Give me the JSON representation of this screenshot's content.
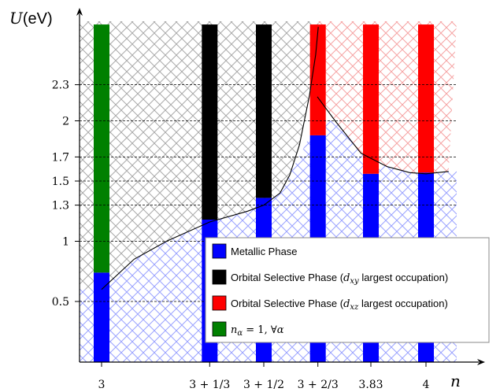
{
  "chart_data": {
    "type": "bar",
    "xlabel": "n",
    "ylabel": "U(eV)",
    "x_ticks": [
      {
        "x": 3.0,
        "label": "3"
      },
      {
        "x": 3.3333,
        "label": "3 + 1/3"
      },
      {
        "x": 3.5,
        "label": "3 + 1/2"
      },
      {
        "x": 3.6667,
        "label": "3 + 2/3"
      },
      {
        "x": 3.83,
        "label": "3.83"
      },
      {
        "x": 4.0,
        "label": "4"
      }
    ],
    "y_ticks": [
      {
        "value": 0.5,
        "label": "0.5"
      },
      {
        "value": 1.0,
        "label": "1"
      },
      {
        "value": 1.3,
        "label": "1.3"
      },
      {
        "value": 1.5,
        "label": "1.5"
      },
      {
        "value": 1.7,
        "label": "1.7"
      },
      {
        "value": 2.0,
        "label": "2"
      },
      {
        "value": 2.3,
        "label": "2.3"
      }
    ],
    "ylim": [
      -0.05,
      2.8
    ],
    "grid": "dashed horizontal lines at labelled U values",
    "legend_position": "lower-right",
    "legend": [
      {
        "key": "metallic",
        "label": "Metallic Phase",
        "color": "#0000ff"
      },
      {
        "key": "osp_xy",
        "label": "Orbital Selective Phase (dxy largest occupation)",
        "color": "#000000"
      },
      {
        "key": "osp_xz",
        "label": "Orbital Selective Phase (dxz largest occupation)",
        "color": "#ff0000"
      },
      {
        "key": "mott",
        "label": "nα = 1, ∀α",
        "color": "#008000"
      }
    ],
    "columns": [
      {
        "x_label": "3",
        "segments": [
          {
            "phase": "metallic",
            "from": -0.05,
            "to": 0.74
          },
          {
            "phase": "mott",
            "from": 0.74,
            "to": 2.8
          }
        ]
      },
      {
        "x_label": "3 + 1/3",
        "segments": [
          {
            "phase": "metallic",
            "from": -0.05,
            "to": 1.18
          },
          {
            "phase": "osp_xy",
            "from": 1.18,
            "to": 2.8
          }
        ]
      },
      {
        "x_label": "3 + 1/2",
        "segments": [
          {
            "phase": "metallic",
            "from": -0.05,
            "to": 1.36
          },
          {
            "phase": "osp_xy",
            "from": 1.36,
            "to": 2.8
          }
        ]
      },
      {
        "x_label": "3 + 2/3",
        "segments": [
          {
            "phase": "metallic",
            "from": -0.05,
            "to": 1.88
          },
          {
            "phase": "osp_xz",
            "from": 1.88,
            "to": 2.8
          }
        ]
      },
      {
        "x_label": "3.83",
        "segments": [
          {
            "phase": "metallic",
            "from": -0.05,
            "to": 1.56
          },
          {
            "phase": "osp_xz",
            "from": 1.56,
            "to": 2.8
          }
        ]
      },
      {
        "x_label": "4",
        "segments": [
          {
            "phase": "metallic",
            "from": -0.05,
            "to": 1.57
          },
          {
            "phase": "osp_xz",
            "from": 1.57,
            "to": 2.8
          }
        ]
      }
    ],
    "colors": {
      "metallic": "#0000ff",
      "osp_xy": "#000000",
      "osp_xz": "#ff0000",
      "mott": "#008000",
      "hatch_metallic": "#9aa2ff",
      "hatch_osp_xy": "#a9a9a9",
      "hatch_osp_xz": "#f6a3a3"
    }
  }
}
